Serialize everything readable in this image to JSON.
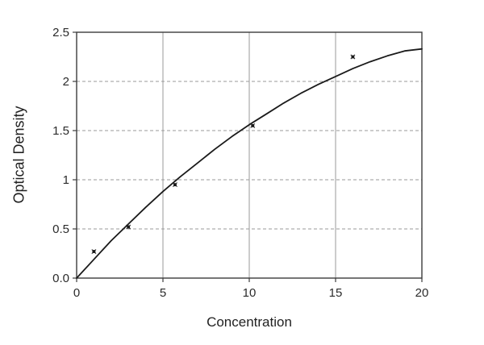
{
  "chart_data": {
    "type": "scatter",
    "title": "",
    "xlabel": "Concentration",
    "ylabel": "Optical Density",
    "xlim": [
      0,
      20
    ],
    "ylim": [
      0,
      2.5
    ],
    "x_ticks": [
      0,
      5,
      10,
      15,
      20
    ],
    "x_tick_labels": [
      "0",
      "5",
      "10",
      "15",
      "20"
    ],
    "y_ticks": [
      0,
      0.5,
      1,
      1.5,
      2,
      2.5
    ],
    "y_tick_labels": [
      "0.0",
      "0.5",
      "1",
      "1.5",
      "2",
      "2.5"
    ],
    "points": [
      [
        1,
        0.27
      ],
      [
        3,
        0.52
      ],
      [
        5.7,
        0.95
      ],
      [
        10.2,
        1.55
      ],
      [
        16,
        2.25
      ]
    ],
    "curve": [
      [
        0,
        0
      ],
      [
        1,
        0.19
      ],
      [
        2,
        0.38
      ],
      [
        3,
        0.55
      ],
      [
        4,
        0.72
      ],
      [
        5,
        0.88
      ],
      [
        6,
        1.03
      ],
      [
        7,
        1.17
      ],
      [
        8,
        1.31
      ],
      [
        9,
        1.44
      ],
      [
        10,
        1.56
      ],
      [
        11,
        1.67
      ],
      [
        12,
        1.78
      ],
      [
        13,
        1.88
      ],
      [
        14,
        1.97
      ],
      [
        15,
        2.05
      ],
      [
        16,
        2.13
      ],
      [
        17,
        2.2
      ],
      [
        18,
        2.26
      ],
      [
        19,
        2.31
      ],
      [
        20,
        2.33
      ]
    ],
    "grid": {
      "horizontal": "dashed",
      "vertical": "solid"
    },
    "legend": "none",
    "colors": {
      "curve": "#1a1a1a",
      "marker": "#1a1a1a",
      "grid": "#9a9a9a",
      "frame": "#3c3c3c",
      "tick_text": "#2b2b2b"
    }
  }
}
